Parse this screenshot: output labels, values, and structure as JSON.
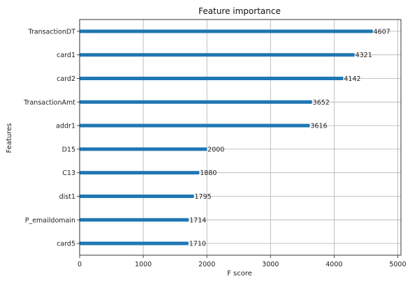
{
  "chart_data": {
    "type": "bar",
    "orientation": "horizontal",
    "title": "Feature importance",
    "xlabel": "F score",
    "ylabel": "Features",
    "xlim": [
      0,
      5050
    ],
    "xticks": [
      0,
      1000,
      2000,
      3000,
      4000,
      5000
    ],
    "grid": true,
    "categories": [
      "TransactionDT",
      "card1",
      "card2",
      "TransactionAmt",
      "addr1",
      "D15",
      "C13",
      "dist1",
      "P_emaildomain",
      "card5"
    ],
    "values": [
      4607,
      4321,
      4142,
      3652,
      3616,
      2000,
      1880,
      1795,
      1714,
      1710
    ],
    "bar_color": "#1f77b4"
  }
}
